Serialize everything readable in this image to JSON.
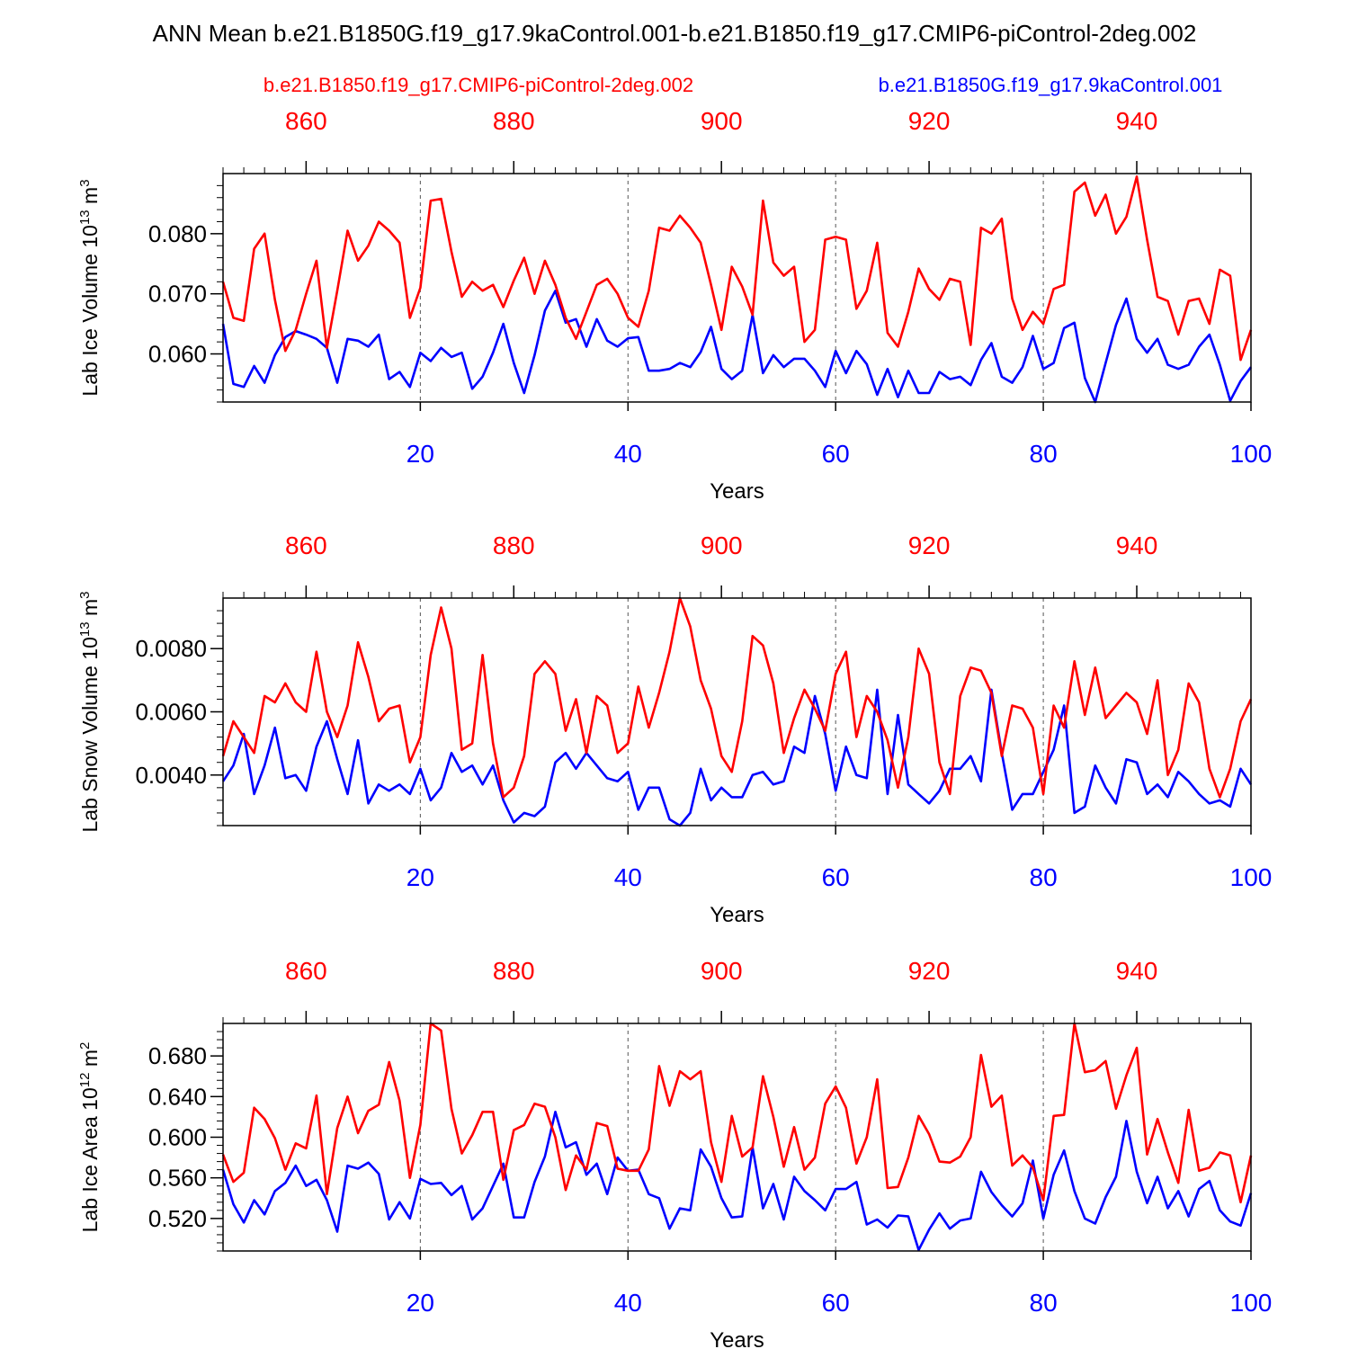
{
  "title": "ANN Mean b.e21.B1850G.f19_g17.9kaControl.001-b.e21.B1850.f19_g17.CMIP6-piControl-2deg.002",
  "colors": {
    "series1": "#ff0000",
    "series2": "#0000ff",
    "axis": "#000000",
    "grid": "#555555"
  },
  "legend": {
    "left": "b.e21.B1850.f19_g17.CMIP6-piControl-2deg.002",
    "right": "b.e21.B1850G.f19_g17.9kaControl.001"
  },
  "chart_data": [
    {
      "type": "line",
      "title": "Lab Ice Volume",
      "ylabel": "Lab Ice Volume 10",
      "ylabel_exp": "13",
      "ylabel_unit": " m",
      "ylabel_unit_exp": "3",
      "xlabel": "Years",
      "xlim": [
        1,
        100
      ],
      "ylim": [
        0.052,
        0.09
      ],
      "yticks": [
        0.06,
        0.07,
        0.08
      ],
      "ytick_labels": [
        "0.060",
        "0.070",
        "0.080"
      ],
      "yminor": [
        0.052,
        0.054,
        0.056,
        0.058,
        0.062,
        0.064,
        0.066,
        0.068,
        0.072,
        0.074,
        0.076,
        0.078,
        0.082,
        0.084,
        0.086,
        0.088
      ],
      "xticks": [
        20,
        40,
        60,
        80,
        100
      ],
      "xtick_labels": [
        "20",
        "40",
        "60",
        "80",
        "100"
      ],
      "top_xlim": [
        852,
        951
      ],
      "top_xticks": [
        860,
        880,
        900,
        920,
        940
      ],
      "top_xtick_labels": [
        "860",
        "880",
        "900",
        "920",
        "940"
      ],
      "vgrid": [
        20,
        40,
        60,
        80
      ],
      "series": [
        {
          "name": "b.e21.B1850.f19_g17.CMIP6-piControl-2deg.002",
          "color": "#ff0000",
          "values": [
            0.072,
            0.066,
            0.0655,
            0.0775,
            0.08,
            0.069,
            0.0605,
            0.064,
            0.07,
            0.0755,
            0.061,
            0.0705,
            0.0805,
            0.0755,
            0.078,
            0.082,
            0.0805,
            0.0785,
            0.066,
            0.071,
            0.0855,
            0.0858,
            0.077,
            0.0695,
            0.072,
            0.0705,
            0.0715,
            0.0678,
            0.0722,
            0.076,
            0.07,
            0.0755,
            0.0715,
            0.066,
            0.0625,
            0.067,
            0.0715,
            0.0725,
            0.07,
            0.066,
            0.0645,
            0.0705,
            0.081,
            0.0805,
            0.083,
            0.081,
            0.0785,
            0.0715,
            0.064,
            0.0745,
            0.0712,
            0.0665,
            0.0855,
            0.0752,
            0.073,
            0.0745,
            0.062,
            0.064,
            0.079,
            0.0795,
            0.079,
            0.0675,
            0.0705,
            0.0785,
            0.0635,
            0.0612,
            0.067,
            0.0742,
            0.0708,
            0.069,
            0.0725,
            0.072,
            0.0615,
            0.081,
            0.08,
            0.0825,
            0.0692,
            0.064,
            0.067,
            0.065,
            0.0708,
            0.0715,
            0.087,
            0.0885,
            0.083,
            0.0865,
            0.08,
            0.0828,
            0.0895,
            0.079,
            0.0695,
            0.0688,
            0.0632,
            0.0688,
            0.0692,
            0.065,
            0.074,
            0.073,
            0.059,
            0.064
          ]
        },
        {
          "name": "b.e21.B1850G.f19_g17.9kaControl.001",
          "color": "#0000ff",
          "values": [
            0.065,
            0.055,
            0.0545,
            0.058,
            0.0552,
            0.0598,
            0.0628,
            0.0638,
            0.0632,
            0.0625,
            0.061,
            0.0552,
            0.0625,
            0.0622,
            0.0612,
            0.0632,
            0.0558,
            0.057,
            0.0545,
            0.0602,
            0.0588,
            0.061,
            0.0595,
            0.0602,
            0.0542,
            0.0562,
            0.0602,
            0.065,
            0.0585,
            0.0535,
            0.0598,
            0.0672,
            0.0705,
            0.0652,
            0.0658,
            0.0612,
            0.0658,
            0.0622,
            0.0612,
            0.0626,
            0.0628,
            0.0572,
            0.0572,
            0.0575,
            0.0585,
            0.0578,
            0.0603,
            0.0645,
            0.0575,
            0.0558,
            0.0572,
            0.0665,
            0.0568,
            0.0598,
            0.0578,
            0.0592,
            0.0592,
            0.0572,
            0.0545,
            0.0605,
            0.0568,
            0.0605,
            0.0583,
            0.0532,
            0.0575,
            0.0528,
            0.0572,
            0.0535,
            0.0535,
            0.057,
            0.0558,
            0.0562,
            0.0548,
            0.059,
            0.0618,
            0.0562,
            0.0552,
            0.0578,
            0.063,
            0.0575,
            0.0585,
            0.0643,
            0.0652,
            0.056,
            0.052,
            0.0585,
            0.0648,
            0.0692,
            0.0625,
            0.0602,
            0.0625,
            0.0582,
            0.0575,
            0.0582,
            0.0612,
            0.0632,
            0.0582,
            0.0522,
            0.0555,
            0.0578
          ]
        }
      ]
    },
    {
      "type": "line",
      "title": "Lab Snow Volume",
      "ylabel": "Lab Snow Volume 10",
      "ylabel_exp": "13",
      "ylabel_unit": " m",
      "ylabel_unit_exp": "3",
      "xlabel": "Years",
      "xlim": [
        1,
        100
      ],
      "ylim": [
        0.0024,
        0.0096
      ],
      "yticks": [
        0.004,
        0.006,
        0.008
      ],
      "ytick_labels": [
        "0.0040",
        "0.0060",
        "0.0080"
      ],
      "yminor": [
        0.0024,
        0.0028,
        0.0032,
        0.0036,
        0.0044,
        0.0048,
        0.0052,
        0.0056,
        0.0064,
        0.0068,
        0.0072,
        0.0076,
        0.0084,
        0.0088,
        0.0092
      ],
      "xticks": [
        20,
        40,
        60,
        80,
        100
      ],
      "xtick_labels": [
        "20",
        "40",
        "60",
        "80",
        "100"
      ],
      "top_xlim": [
        852,
        951
      ],
      "top_xticks": [
        860,
        880,
        900,
        920,
        940
      ],
      "top_xtick_labels": [
        "860",
        "880",
        "900",
        "920",
        "940"
      ],
      "vgrid": [
        20,
        40,
        60,
        80
      ],
      "series": [
        {
          "name": "b.e21.B1850.f19_g17.CMIP6-piControl-2deg.002",
          "color": "#ff0000",
          "values": [
            0.0046,
            0.0057,
            0.0052,
            0.0047,
            0.0065,
            0.0063,
            0.0069,
            0.0063,
            0.006,
            0.0079,
            0.006,
            0.0052,
            0.0062,
            0.0082,
            0.0071,
            0.0057,
            0.0061,
            0.0062,
            0.0044,
            0.0052,
            0.0078,
            0.0093,
            0.008,
            0.0048,
            0.005,
            0.0078,
            0.005,
            0.0033,
            0.0036,
            0.0046,
            0.0072,
            0.0076,
            0.0072,
            0.0054,
            0.0064,
            0.0047,
            0.0065,
            0.0062,
            0.0047,
            0.005,
            0.0068,
            0.0055,
            0.0066,
            0.0079,
            0.0096,
            0.0087,
            0.007,
            0.0061,
            0.0046,
            0.0041,
            0.0057,
            0.0084,
            0.0081,
            0.0069,
            0.0047,
            0.0058,
            0.0067,
            0.0061,
            0.0054,
            0.0072,
            0.0079,
            0.0052,
            0.0065,
            0.006,
            0.0051,
            0.0036,
            0.0052,
            0.008,
            0.0072,
            0.0044,
            0.0034,
            0.0065,
            0.0074,
            0.0073,
            0.0066,
            0.0046,
            0.0062,
            0.0061,
            0.0055,
            0.0034,
            0.0062,
            0.0055,
            0.0076,
            0.0059,
            0.0074,
            0.0058,
            0.0062,
            0.0066,
            0.0063,
            0.0053,
            0.007,
            0.004,
            0.0048,
            0.0069,
            0.0063,
            0.0042,
            0.0033,
            0.0042,
            0.0057,
            0.0064
          ]
        },
        {
          "name": "b.e21.B1850G.f19_g17.9kaControl.001",
          "color": "#0000ff",
          "values": [
            0.0038,
            0.0043,
            0.0053,
            0.0034,
            0.0043,
            0.0055,
            0.0039,
            0.004,
            0.0035,
            0.0049,
            0.0057,
            0.0045,
            0.0034,
            0.0051,
            0.0031,
            0.0037,
            0.0035,
            0.0037,
            0.0034,
            0.0042,
            0.0032,
            0.0036,
            0.0047,
            0.0041,
            0.0043,
            0.0037,
            0.0043,
            0.0032,
            0.0025,
            0.0028,
            0.0027,
            0.003,
            0.0044,
            0.0047,
            0.0042,
            0.0047,
            0.0043,
            0.0039,
            0.0038,
            0.0041,
            0.0029,
            0.0036,
            0.0036,
            0.0026,
            0.0024,
            0.0028,
            0.0042,
            0.0032,
            0.0036,
            0.0033,
            0.0033,
            0.004,
            0.0041,
            0.0037,
            0.0038,
            0.0049,
            0.0047,
            0.0065,
            0.0053,
            0.0035,
            0.0049,
            0.004,
            0.0039,
            0.0067,
            0.0034,
            0.0059,
            0.0037,
            0.0034,
            0.0031,
            0.0035,
            0.0042,
            0.0042,
            0.0046,
            0.0038,
            0.0067,
            0.0047,
            0.0029,
            0.0034,
            0.0034,
            0.0041,
            0.0048,
            0.0062,
            0.0028,
            0.003,
            0.0043,
            0.0036,
            0.0031,
            0.0045,
            0.0044,
            0.0034,
            0.0037,
            0.0033,
            0.0041,
            0.0038,
            0.0034,
            0.0031,
            0.0032,
            0.003,
            0.0042,
            0.0037
          ]
        }
      ]
    },
    {
      "type": "line",
      "title": "Lab Ice Area",
      "ylabel": "Lab Ice Area 10",
      "ylabel_exp": "12",
      "ylabel_unit": " m",
      "ylabel_unit_exp": "2",
      "xlabel": "Years",
      "xlim": [
        1,
        100
      ],
      "ylim": [
        0.488,
        0.712
      ],
      "yticks": [
        0.52,
        0.56,
        0.6,
        0.64,
        0.68
      ],
      "ytick_labels": [
        "0.520",
        "0.560",
        "0.600",
        "0.640",
        "0.680"
      ],
      "yminor": [
        0.488,
        0.496,
        0.504,
        0.512,
        0.528,
        0.536,
        0.544,
        0.552,
        0.568,
        0.576,
        0.584,
        0.592,
        0.608,
        0.616,
        0.624,
        0.632,
        0.648,
        0.656,
        0.664,
        0.672,
        0.688,
        0.696,
        0.704
      ],
      "xticks": [
        20,
        40,
        60,
        80,
        100
      ],
      "xtick_labels": [
        "20",
        "40",
        "60",
        "80",
        "100"
      ],
      "top_xlim": [
        852,
        951
      ],
      "top_xticks": [
        860,
        880,
        900,
        920,
        940
      ],
      "top_xtick_labels": [
        "860",
        "880",
        "900",
        "920",
        "940"
      ],
      "vgrid": [
        20,
        40,
        60,
        80
      ],
      "series": [
        {
          "name": "b.e21.B1850.f19_g17.CMIP6-piControl-2deg.002",
          "color": "#ff0000",
          "values": [
            0.583,
            0.556,
            0.565,
            0.629,
            0.618,
            0.599,
            0.568,
            0.594,
            0.589,
            0.641,
            0.544,
            0.609,
            0.64,
            0.604,
            0.626,
            0.632,
            0.674,
            0.636,
            0.56,
            0.612,
            0.712,
            0.705,
            0.628,
            0.584,
            0.602,
            0.625,
            0.625,
            0.558,
            0.607,
            0.612,
            0.633,
            0.63,
            0.6,
            0.548,
            0.582,
            0.568,
            0.614,
            0.611,
            0.569,
            0.567,
            0.567,
            0.588,
            0.67,
            0.631,
            0.665,
            0.657,
            0.665,
            0.595,
            0.556,
            0.621,
            0.581,
            0.59,
            0.66,
            0.62,
            0.571,
            0.61,
            0.568,
            0.58,
            0.633,
            0.65,
            0.629,
            0.574,
            0.6,
            0.657,
            0.55,
            0.551,
            0.58,
            0.621,
            0.603,
            0.576,
            0.575,
            0.581,
            0.6,
            0.681,
            0.63,
            0.641,
            0.572,
            0.582,
            0.57,
            0.538,
            0.621,
            0.622,
            0.712,
            0.664,
            0.666,
            0.675,
            0.628,
            0.661,
            0.688,
            0.583,
            0.618,
            0.585,
            0.555,
            0.627,
            0.567,
            0.57,
            0.585,
            0.582,
            0.536,
            0.582
          ]
        },
        {
          "name": "b.e21.B1850G.f19_g17.9kaControl.001",
          "color": "#0000ff",
          "values": [
            0.568,
            0.534,
            0.516,
            0.538,
            0.524,
            0.547,
            0.555,
            0.572,
            0.552,
            0.558,
            0.538,
            0.507,
            0.572,
            0.569,
            0.575,
            0.564,
            0.519,
            0.536,
            0.52,
            0.559,
            0.554,
            0.555,
            0.543,
            0.552,
            0.519,
            0.53,
            0.552,
            0.574,
            0.521,
            0.521,
            0.556,
            0.581,
            0.625,
            0.59,
            0.595,
            0.563,
            0.574,
            0.544,
            0.58,
            0.567,
            0.568,
            0.544,
            0.54,
            0.51,
            0.53,
            0.528,
            0.588,
            0.571,
            0.54,
            0.521,
            0.522,
            0.59,
            0.53,
            0.554,
            0.519,
            0.561,
            0.547,
            0.538,
            0.528,
            0.549,
            0.549,
            0.556,
            0.514,
            0.519,
            0.511,
            0.523,
            0.522,
            0.489,
            0.509,
            0.525,
            0.51,
            0.518,
            0.52,
            0.566,
            0.546,
            0.533,
            0.522,
            0.535,
            0.577,
            0.52,
            0.563,
            0.587,
            0.547,
            0.52,
            0.515,
            0.541,
            0.561,
            0.616,
            0.566,
            0.535,
            0.561,
            0.53,
            0.547,
            0.522,
            0.549,
            0.557,
            0.528,
            0.517,
            0.513,
            0.545
          ]
        }
      ]
    }
  ]
}
